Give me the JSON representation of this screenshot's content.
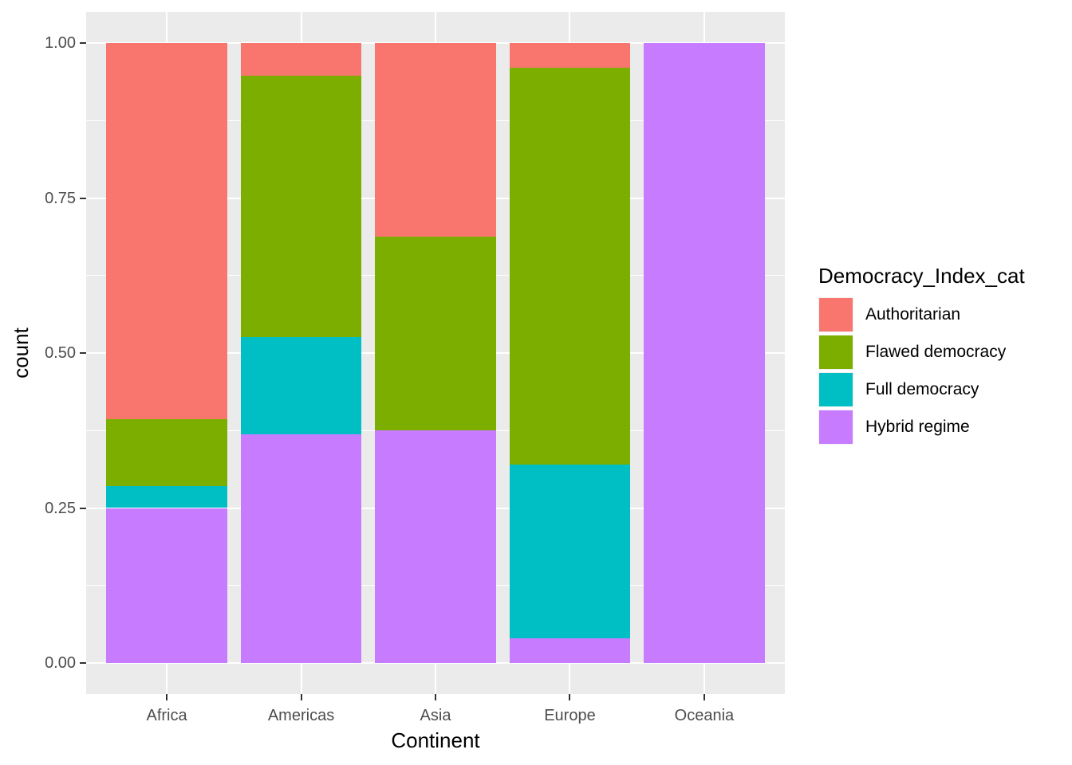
{
  "figure": {
    "background": "#FFFFFF",
    "panel_background": "#EBEBEB",
    "grid_color": "#FFFFFF",
    "tick_color": "#333333",
    "tick_label_color": "#4D4D4D",
    "axis_title_color": "#000000"
  },
  "chart_data": {
    "type": "bar",
    "variant": "stacked-filled-proportion",
    "title": "",
    "xlabel": "Continent",
    "ylabel": "count",
    "categories": [
      "Africa",
      "Americas",
      "Asia",
      "Europe",
      "Oceania"
    ],
    "series": [
      {
        "name": "Hybrid regime",
        "color": "#C77CFF",
        "values": [
          0.25,
          0.3684,
          0.375,
          0.04,
          1.0
        ]
      },
      {
        "name": "Full democracy",
        "color": "#00BFC4",
        "values": [
          0.0357,
          0.1579,
          0.0,
          0.28,
          0.0
        ]
      },
      {
        "name": "Flawed democracy",
        "color": "#7CAE00",
        "values": [
          0.1071,
          0.4211,
          0.3125,
          0.64,
          0.0
        ]
      },
      {
        "name": "Authoritarian",
        "color": "#F8766D",
        "values": [
          0.6072,
          0.0526,
          0.3125,
          0.04,
          0.0
        ]
      }
    ],
    "stack_order": "bottom-to-top",
    "ylim": [
      0,
      1
    ],
    "y_expansion": 0.05,
    "grid": {
      "major_y": [
        0,
        0.25,
        0.5,
        0.75,
        1.0
      ],
      "minor_y": [
        0.125,
        0.375,
        0.625,
        0.875
      ],
      "major_x_at_category_centers": true
    },
    "y_ticks": {
      "values": [
        0.0,
        0.25,
        0.5,
        0.75,
        1.0
      ],
      "labels": [
        "0.00",
        "0.25",
        "0.50",
        "0.75",
        "1.00"
      ]
    },
    "legend": {
      "title": "Democracy_Index_cat",
      "position": "right",
      "entries": [
        {
          "label": "Authoritarian",
          "color": "#F8766D"
        },
        {
          "label": "Flawed democracy",
          "color": "#7CAE00"
        },
        {
          "label": "Full democracy",
          "color": "#00BFC4"
        },
        {
          "label": "Hybrid regime",
          "color": "#C77CFF"
        }
      ]
    }
  }
}
